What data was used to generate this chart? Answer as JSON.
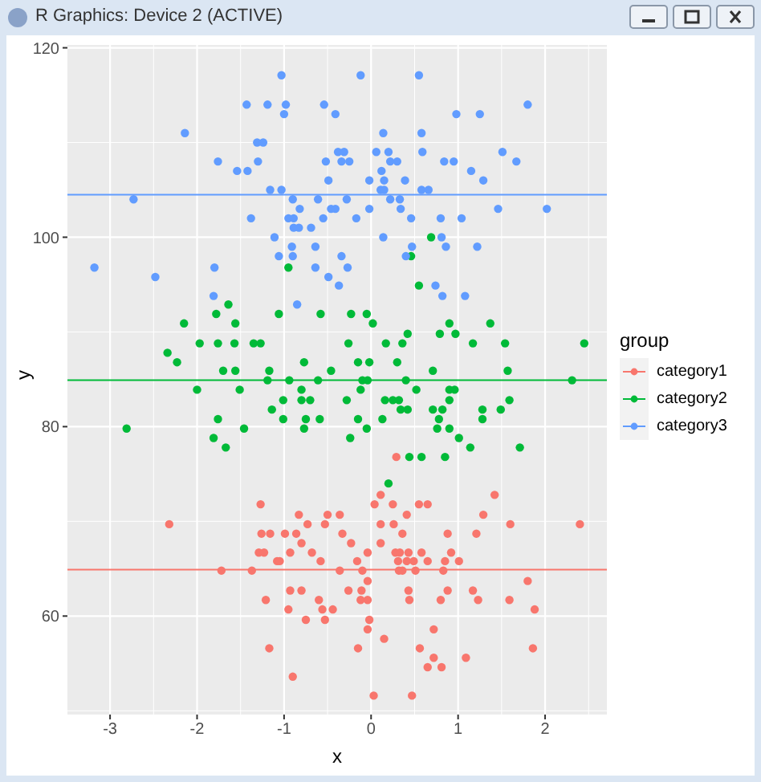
{
  "chart_data": {
    "type": "scatter",
    "xlabel": "x",
    "ylabel": "y",
    "legend_title": "group",
    "legend": "right",
    "grid": true,
    "marker": "circle",
    "annotations": [
      "R Graphics: Device 2 (ACTIVE)"
    ],
    "xlim": [
      -3.49,
      2.71
    ],
    "xticks": [
      -3,
      -2,
      -1,
      0,
      1,
      2
    ],
    "ylim": [
      49.6,
      120.3
    ],
    "yticks": [
      60,
      80,
      100,
      120
    ],
    "ref_lines": [
      {
        "axis": "y",
        "value": 64.9,
        "color": "#f8766d"
      },
      {
        "axis": "y",
        "value": 84.9,
        "color": "#00ba38"
      },
      {
        "axis": "y",
        "value": 104.5,
        "color": "#619cff"
      }
    ],
    "series": [
      {
        "name": "category1",
        "color": "#f8766d",
        "x": [
          0.29,
          0.11,
          1.42,
          -1.27,
          0.04,
          0.25,
          0.55,
          0.65,
          -0.83,
          -0.5,
          -0.36,
          0.41,
          1.29,
          -2.32,
          -0.73,
          -0.53,
          0.11,
          0.26,
          1.6,
          2.4,
          -1.26,
          -1.16,
          -0.99,
          -0.86,
          -0.33,
          0.36,
          0.88,
          1.21,
          -0.8,
          -0.23,
          0.11,
          -1.29,
          -1.23,
          -0.93,
          -0.68,
          -0.04,
          0.28,
          0.33,
          0.43,
          0.58,
          0.92,
          -1.08,
          -1.05,
          -0.58,
          -0.16,
          0.31,
          0.41,
          0.49,
          0.65,
          0.85,
          1.01,
          -1.72,
          -1.37,
          -0.36,
          -0.1,
          0.32,
          0.36,
          0.51,
          0.83,
          -0.04,
          1.8,
          -0.93,
          -0.8,
          -0.26,
          -0.11,
          0.43,
          0.88,
          1.17,
          -1.21,
          -0.6,
          -0.12,
          -0.04,
          0.44,
          0.8,
          1.23,
          1.59,
          -0.95,
          -0.56,
          -0.44,
          1.88,
          -0.75,
          -0.53,
          -0.02,
          -0.04,
          0.72,
          0.15,
          -1.17,
          -0.15,
          0.56,
          1.86,
          0.72,
          1.09,
          0.65,
          0.81,
          -0.9,
          0.03,
          0.47
        ],
        "values": [
          76.8,
          72.8,
          72.8,
          71.8,
          71.8,
          71.8,
          71.8,
          71.8,
          70.7,
          70.7,
          70.7,
          70.7,
          70.7,
          69.7,
          69.7,
          69.7,
          69.7,
          69.7,
          69.7,
          69.7,
          68.7,
          68.7,
          68.7,
          68.7,
          68.7,
          68.7,
          68.7,
          68.7,
          67.7,
          67.7,
          67.7,
          66.7,
          66.7,
          66.7,
          66.7,
          66.7,
          66.7,
          66.7,
          66.7,
          66.7,
          66.7,
          65.8,
          65.8,
          65.8,
          65.8,
          65.8,
          65.8,
          65.8,
          65.8,
          65.8,
          65.8,
          64.8,
          64.8,
          64.8,
          64.8,
          64.8,
          64.8,
          64.8,
          64.8,
          63.7,
          63.7,
          62.7,
          62.7,
          62.7,
          62.7,
          62.7,
          62.7,
          62.7,
          61.7,
          61.7,
          61.7,
          61.7,
          61.7,
          61.7,
          61.7,
          61.7,
          60.7,
          60.7,
          60.7,
          60.7,
          59.6,
          59.6,
          59.6,
          58.6,
          58.6,
          57.6,
          56.6,
          56.6,
          56.6,
          56.6,
          55.6,
          55.6,
          54.6,
          54.6,
          53.6,
          51.6,
          51.6
        ]
      },
      {
        "name": "category2",
        "color": "#00ba38",
        "x": [
          -0.95,
          0.46,
          0.69,
          0.55,
          -1.64,
          -1.78,
          -1.06,
          -0.58,
          -0.23,
          -0.05,
          -2.15,
          -1.56,
          0.02,
          0.9,
          1.37,
          0.42,
          0.79,
          0.97,
          -1.97,
          -1.76,
          -1.57,
          -1.35,
          -1.27,
          -0.26,
          0.17,
          0.36,
          1.17,
          1.54,
          2.45,
          -2.34,
          -2.23,
          -0.77,
          -0.15,
          -0.02,
          0.3,
          -1.7,
          -1.56,
          -1.17,
          -0.46,
          0.71,
          1.57,
          -1.19,
          -0.94,
          -0.61,
          -0.1,
          -0.04,
          0.4,
          2.31,
          -2.0,
          -1.51,
          -0.8,
          -0.12,
          0.52,
          0.9,
          0.96,
          -1.01,
          -0.8,
          -0.7,
          -0.28,
          0.16,
          0.25,
          0.32,
          0.9,
          1.59,
          -1.14,
          0.34,
          0.42,
          0.71,
          0.82,
          1.28,
          1.49,
          -1.76,
          -1.01,
          -0.75,
          -0.59,
          -0.15,
          0.13,
          0.78,
          1.28,
          -2.81,
          -1.46,
          -0.77,
          -0.05,
          0.76,
          0.9,
          -1.81,
          -0.24,
          1.01,
          -1.67,
          1.14,
          1.71,
          0.44,
          0.58,
          0.85,
          0.2
        ],
        "values": [
          96.8,
          98.0,
          100.0,
          94.9,
          92.9,
          91.9,
          91.9,
          91.9,
          91.9,
          91.9,
          90.9,
          90.9,
          90.9,
          90.9,
          90.9,
          89.8,
          89.8,
          89.8,
          88.8,
          88.8,
          88.8,
          88.8,
          88.8,
          88.8,
          88.8,
          88.8,
          88.8,
          88.8,
          88.8,
          87.8,
          86.8,
          86.8,
          86.8,
          86.8,
          86.8,
          85.9,
          85.9,
          85.9,
          85.9,
          85.9,
          85.9,
          84.9,
          84.9,
          84.9,
          84.9,
          84.9,
          84.9,
          84.9,
          83.9,
          83.9,
          83.9,
          83.9,
          83.9,
          83.9,
          83.9,
          82.8,
          82.8,
          82.8,
          82.8,
          82.8,
          82.8,
          82.8,
          82.8,
          82.8,
          81.8,
          81.8,
          81.8,
          81.8,
          81.8,
          81.8,
          81.8,
          80.8,
          80.8,
          80.8,
          80.8,
          80.8,
          80.8,
          80.8,
          80.8,
          79.8,
          79.8,
          79.8,
          79.8,
          79.8,
          79.8,
          78.8,
          78.8,
          78.8,
          77.8,
          77.8,
          77.8,
          76.8,
          76.8,
          76.8,
          74.0
        ]
      },
      {
        "name": "category3",
        "color": "#619cff",
        "x": [
          -1.03,
          -0.12,
          0.55,
          -1.43,
          -1.19,
          -0.98,
          -1.0,
          -0.54,
          -0.41,
          0.98,
          1.25,
          1.8,
          -2.14,
          0.14,
          0.58,
          -1.31,
          -1.24,
          -0.38,
          -0.31,
          0.06,
          0.2,
          0.59,
          1.51,
          -1.76,
          -1.3,
          -0.52,
          -0.34,
          -0.25,
          0.22,
          0.3,
          0.84,
          0.95,
          1.67,
          -1.54,
          -1.42,
          0.12,
          1.15,
          -0.49,
          -0.02,
          0.15,
          0.39,
          1.29,
          -1.16,
          -1.03,
          0.11,
          0.15,
          0.58,
          0.66,
          -2.73,
          -0.9,
          -0.61,
          -0.28,
          0.22,
          0.33,
          -0.82,
          -0.46,
          -0.41,
          -0.02,
          0.34,
          1.46,
          2.02,
          -1.38,
          -0.95,
          -0.89,
          -0.55,
          -0.17,
          0.46,
          0.8,
          1.04,
          -0.89,
          -0.83,
          -0.69,
          -1.11,
          0.14,
          0.81,
          -0.91,
          -0.64,
          0.47,
          0.86,
          1.22,
          -1.06,
          -0.9,
          -0.34,
          0.4,
          -3.18,
          -1.8,
          -0.64,
          -0.27,
          -2.48,
          -0.49,
          -0.37,
          0.74,
          -1.81,
          -0.85,
          0.82,
          1.08
        ],
        "values": [
          117.1,
          117.1,
          117.1,
          114.0,
          114.0,
          114.0,
          113.0,
          114.0,
          113.0,
          113.0,
          113.0,
          114.0,
          111.0,
          111.0,
          111.0,
          110.0,
          110.0,
          109.0,
          109.0,
          109.0,
          109.0,
          109.0,
          109.0,
          108.0,
          108.0,
          108.0,
          108.0,
          108.0,
          108.0,
          108.0,
          108.0,
          108.0,
          108.0,
          107.0,
          107.0,
          107.0,
          107.0,
          106.0,
          106.0,
          106.0,
          106.0,
          106.0,
          105.0,
          105.0,
          105.0,
          105.0,
          105.0,
          105.0,
          104.0,
          104.0,
          104.0,
          104.0,
          104.0,
          104.0,
          103.0,
          103.0,
          103.0,
          103.0,
          103.0,
          103.0,
          103.0,
          102.0,
          102.0,
          102.0,
          102.0,
          102.0,
          102.0,
          102.0,
          102.0,
          101.0,
          101.0,
          101.0,
          100.0,
          100.0,
          100.0,
          99.0,
          99.0,
          99.0,
          99.0,
          99.0,
          98.0,
          98.0,
          98.0,
          98.0,
          96.8,
          96.8,
          96.8,
          96.8,
          95.8,
          95.8,
          94.9,
          94.9,
          93.8,
          92.9,
          93.8,
          93.8
        ]
      }
    ]
  }
}
